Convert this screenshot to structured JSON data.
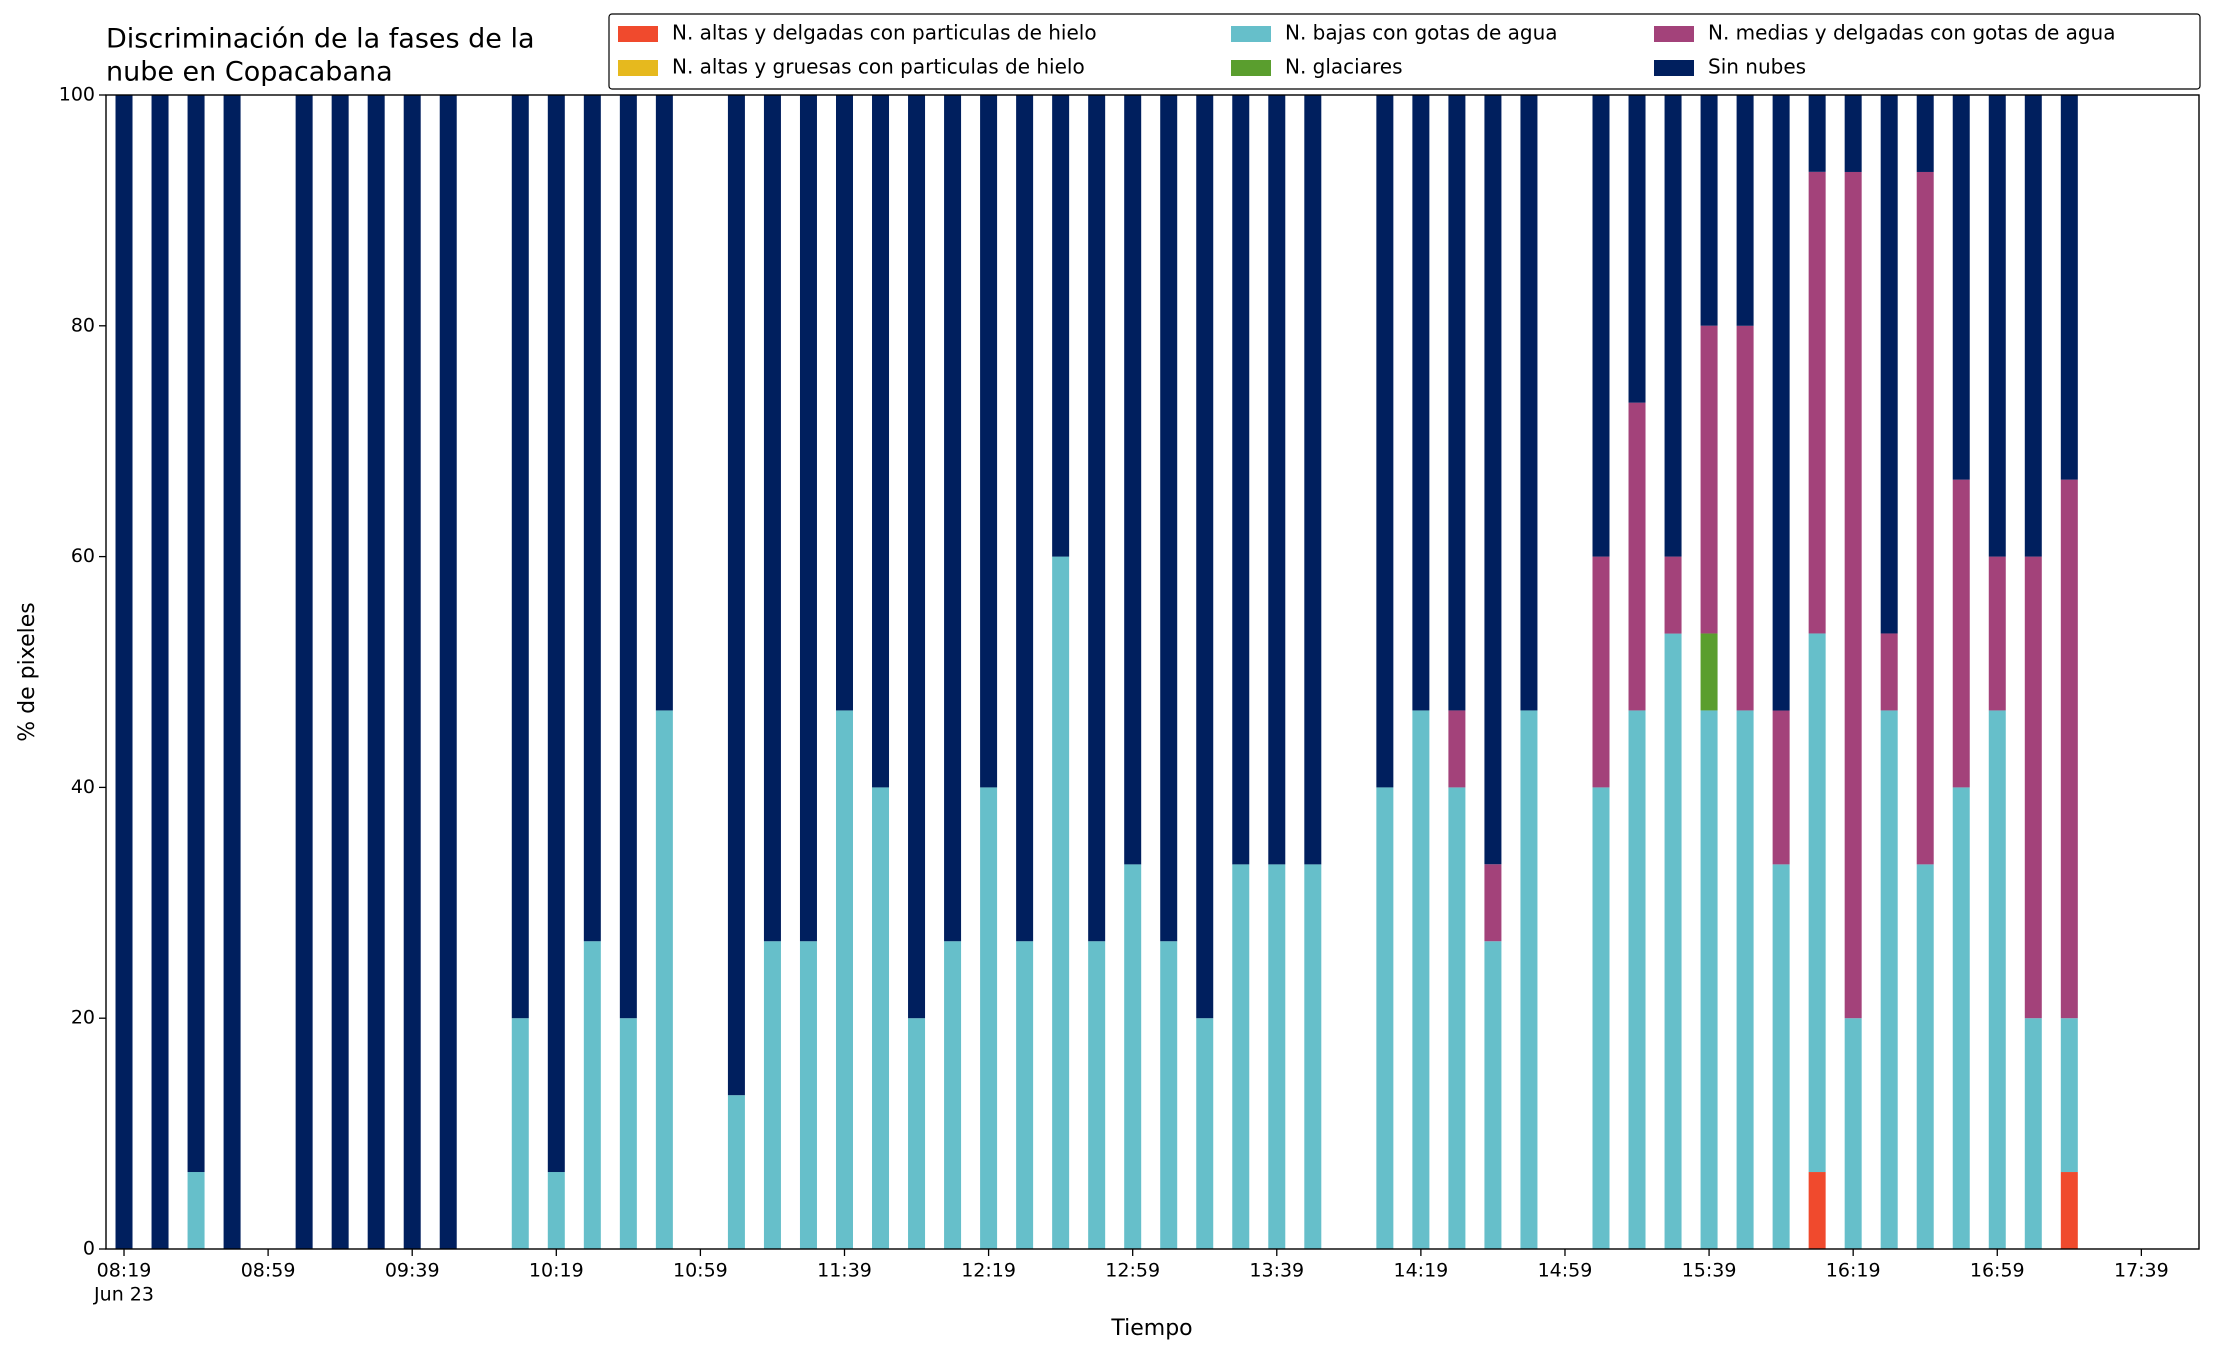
{
  "chart_data": {
    "type": "stacked_bar",
    "title": [
      "Discriminación de la fases de la",
      "nube en Copacabana"
    ],
    "xlabel": "Tiempo",
    "ylabel": "% de pixeles",
    "x_date_label": "Jun 23",
    "x": [
      "08:19",
      "08:29",
      "08:39",
      "08:49",
      "09:09",
      "09:19",
      "09:29",
      "09:39",
      "09:49",
      "10:09",
      "10:19",
      "10:29",
      "10:39",
      "10:49",
      "11:09",
      "11:19",
      "11:29",
      "11:39",
      "11:49",
      "11:59",
      "12:09",
      "12:19",
      "12:29",
      "12:39",
      "12:49",
      "12:59",
      "13:09",
      "13:19",
      "13:29",
      "13:39",
      "13:49",
      "14:09",
      "14:19",
      "14:29",
      "14:39",
      "14:49",
      "15:09",
      "15:19",
      "15:29",
      "15:39",
      "15:49",
      "15:59",
      "16:09",
      "16:19",
      "16:29",
      "16:39",
      "16:49",
      "16:59",
      "17:09",
      "17:19"
    ],
    "xlim": [
      "08:14",
      "17:55"
    ],
    "xticks": [
      "08:19",
      "08:59",
      "09:39",
      "10:19",
      "10:59",
      "11:39",
      "12:19",
      "12:59",
      "13:39",
      "14:19",
      "14:59",
      "15:39",
      "16:19",
      "16:59",
      "17:39"
    ],
    "ylim": [
      0,
      100
    ],
    "yticks": [
      0,
      20,
      40,
      60,
      80,
      100
    ],
    "legend": "upper right",
    "series": [
      {
        "name": "N. altas y delgadas con particulas de hielo",
        "color": "#f04a2d",
        "values": [
          0,
          0,
          0,
          0,
          0,
          0,
          0,
          0,
          0,
          0,
          0,
          0,
          0,
          0,
          0,
          0,
          0,
          0,
          0,
          0,
          0,
          0,
          0,
          0,
          0,
          0,
          0,
          0,
          0,
          0,
          0,
          0,
          0,
          0,
          0,
          0,
          0,
          0,
          0,
          0,
          0,
          0,
          6.67,
          0,
          0,
          0,
          0,
          0,
          0,
          6.67
        ]
      },
      {
        "name": "N. altas y gruesas con particulas de hielo",
        "color": "#e6b91e",
        "values": [
          0,
          0,
          0,
          0,
          0,
          0,
          0,
          0,
          0,
          0,
          0,
          0,
          0,
          0,
          0,
          0,
          0,
          0,
          0,
          0,
          0,
          0,
          0,
          0,
          0,
          0,
          0,
          0,
          0,
          0,
          0,
          0,
          0,
          0,
          0,
          0,
          0,
          0,
          0,
          0,
          0,
          0,
          0,
          0,
          0,
          0,
          0,
          0,
          0,
          0
        ]
      },
      {
        "name": "N. bajas con gotas de agua",
        "color": "#66bfca",
        "values": [
          0,
          0,
          6.67,
          0,
          0,
          0,
          0,
          0,
          0,
          20,
          6.67,
          26.67,
          20,
          46.67,
          13.33,
          26.67,
          26.67,
          46.67,
          40,
          20,
          26.67,
          40,
          26.67,
          60,
          26.67,
          33.33,
          26.67,
          20,
          33.33,
          33.33,
          33.33,
          40,
          46.67,
          40,
          26.67,
          46.67,
          40,
          46.67,
          53.33,
          46.67,
          46.67,
          33.33,
          46.67,
          20,
          46.67,
          33.33,
          40,
          46.67,
          20,
          13.33
        ]
      },
      {
        "name": "N. glaciares",
        "color": "#5a9e2e",
        "values": [
          0,
          0,
          0,
          0,
          0,
          0,
          0,
          0,
          0,
          0,
          0,
          0,
          0,
          0,
          0,
          0,
          0,
          0,
          0,
          0,
          0,
          0,
          0,
          0,
          0,
          0,
          0,
          0,
          0,
          0,
          0,
          0,
          0,
          0,
          0,
          0,
          0,
          0,
          0,
          6.67,
          0,
          0,
          0,
          0,
          0,
          0,
          0,
          0,
          0,
          0
        ]
      },
      {
        "name": "N. medias y delgadas con gotas de agua",
        "color": "#a3427a",
        "values": [
          0,
          0,
          0,
          0,
          0,
          0,
          0,
          0,
          0,
          0,
          0,
          0,
          0,
          0,
          0,
          0,
          0,
          0,
          0,
          0,
          0,
          0,
          0,
          0,
          0,
          0,
          0,
          0,
          0,
          0,
          0,
          0,
          0,
          6.67,
          6.67,
          0,
          20,
          26.67,
          6.67,
          26.67,
          33.33,
          13.33,
          40,
          73.33,
          6.67,
          60,
          26.67,
          13.33,
          40,
          46.67
        ]
      },
      {
        "name": "Sin nubes",
        "color": "#001f5e",
        "values": [
          100,
          100,
          93.33,
          100,
          100,
          100,
          100,
          100,
          100,
          80,
          93.33,
          73.33,
          80,
          53.33,
          86.67,
          73.33,
          73.33,
          53.33,
          60,
          80,
          73.33,
          60,
          73.33,
          40,
          73.33,
          66.67,
          73.33,
          80,
          66.67,
          66.67,
          66.67,
          60,
          53.33,
          53.33,
          66.67,
          53.33,
          40,
          26.67,
          40,
          20,
          20,
          53.33,
          6.67,
          6.67,
          46.67,
          6.67,
          33.33,
          40,
          40,
          33.33
        ]
      }
    ]
  }
}
